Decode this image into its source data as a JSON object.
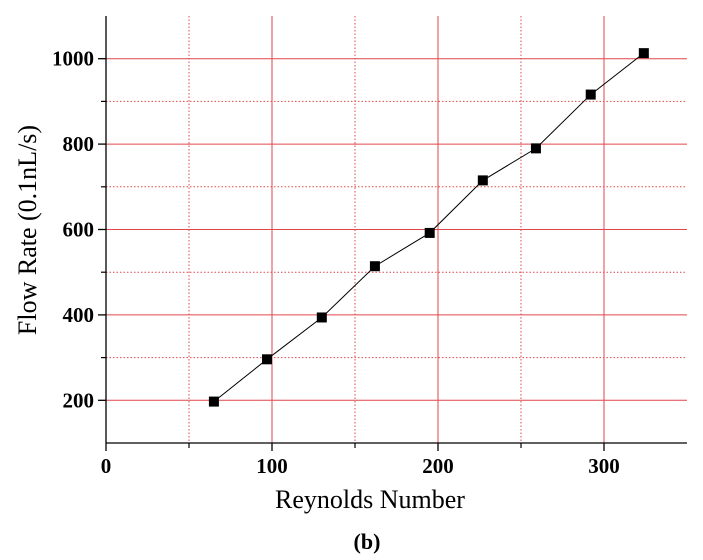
{
  "chart_data": {
    "type": "scatter",
    "title": "",
    "xlabel": "Reynolds Number",
    "ylabel": "Flow Rate (0.1nL/s)",
    "xlim": [
      0,
      350
    ],
    "ylim": [
      100,
      1100
    ],
    "x_ticks": [
      0,
      100,
      200,
      300
    ],
    "y_ticks": [
      200,
      400,
      600,
      800,
      1000
    ],
    "x_tick_labels": [
      "0",
      "100",
      "200",
      "300"
    ],
    "y_tick_labels": [
      "200",
      "400",
      "600",
      "800",
      "1000"
    ],
    "x_minor_ticks": [
      50,
      150,
      250
    ],
    "y_minor_ticks": [
      300,
      500,
      700,
      900
    ],
    "grid": true,
    "grid_color": "#e0474c",
    "marker": "square",
    "connected": true,
    "series": [
      {
        "x": [
          65,
          97,
          130,
          162,
          195,
          227,
          259,
          292,
          324
        ],
        "y": [
          197,
          296,
          394,
          514,
          592,
          715,
          790,
          916,
          1013
        ],
        "color": "#000000"
      }
    ],
    "panel_label": "(b)"
  }
}
